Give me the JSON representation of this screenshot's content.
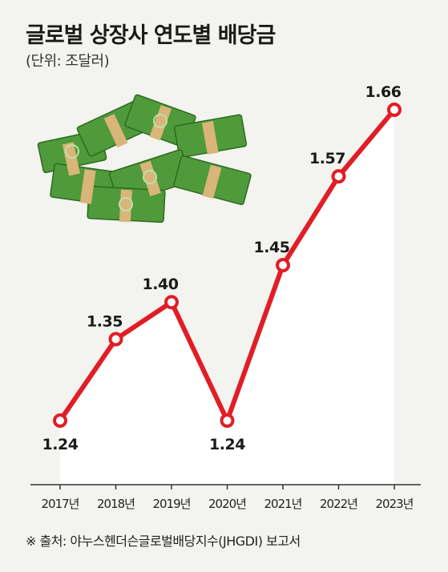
{
  "title": "글로벌 상장사 연도별 배당금",
  "unit_label": "(단위: 조달러)",
  "source": "※ 출처: 야누스헨더슨글로벌배당지수(JHGDI) 보고서",
  "colors": {
    "line": "#e11d26",
    "marker_fill": "#ffffff",
    "area": "#ffffff",
    "background": "#f3f3ef",
    "axis": "#333333"
  },
  "illustration": "stacks-of-dollar-bills",
  "chart_data": {
    "type": "line",
    "title": "글로벌 상장사 연도별 배당금",
    "ylabel": "(단위: 조달러)",
    "xlabel": "",
    "categories": [
      "2017년",
      "2018년",
      "2019년",
      "2020년",
      "2021년",
      "2022년",
      "2023년"
    ],
    "series": [
      {
        "values": [
          1.24,
          1.35,
          1.4,
          1.24,
          1.45,
          1.57,
          1.66
        ]
      }
    ],
    "data_labels": [
      "1.24",
      "1.35",
      "1.40",
      "1.24",
      "1.45",
      "1.57",
      "1.66"
    ],
    "label_position": [
      "below",
      "above",
      "above",
      "below",
      "above",
      "above",
      "above"
    ],
    "grid": false,
    "legend": "none"
  }
}
